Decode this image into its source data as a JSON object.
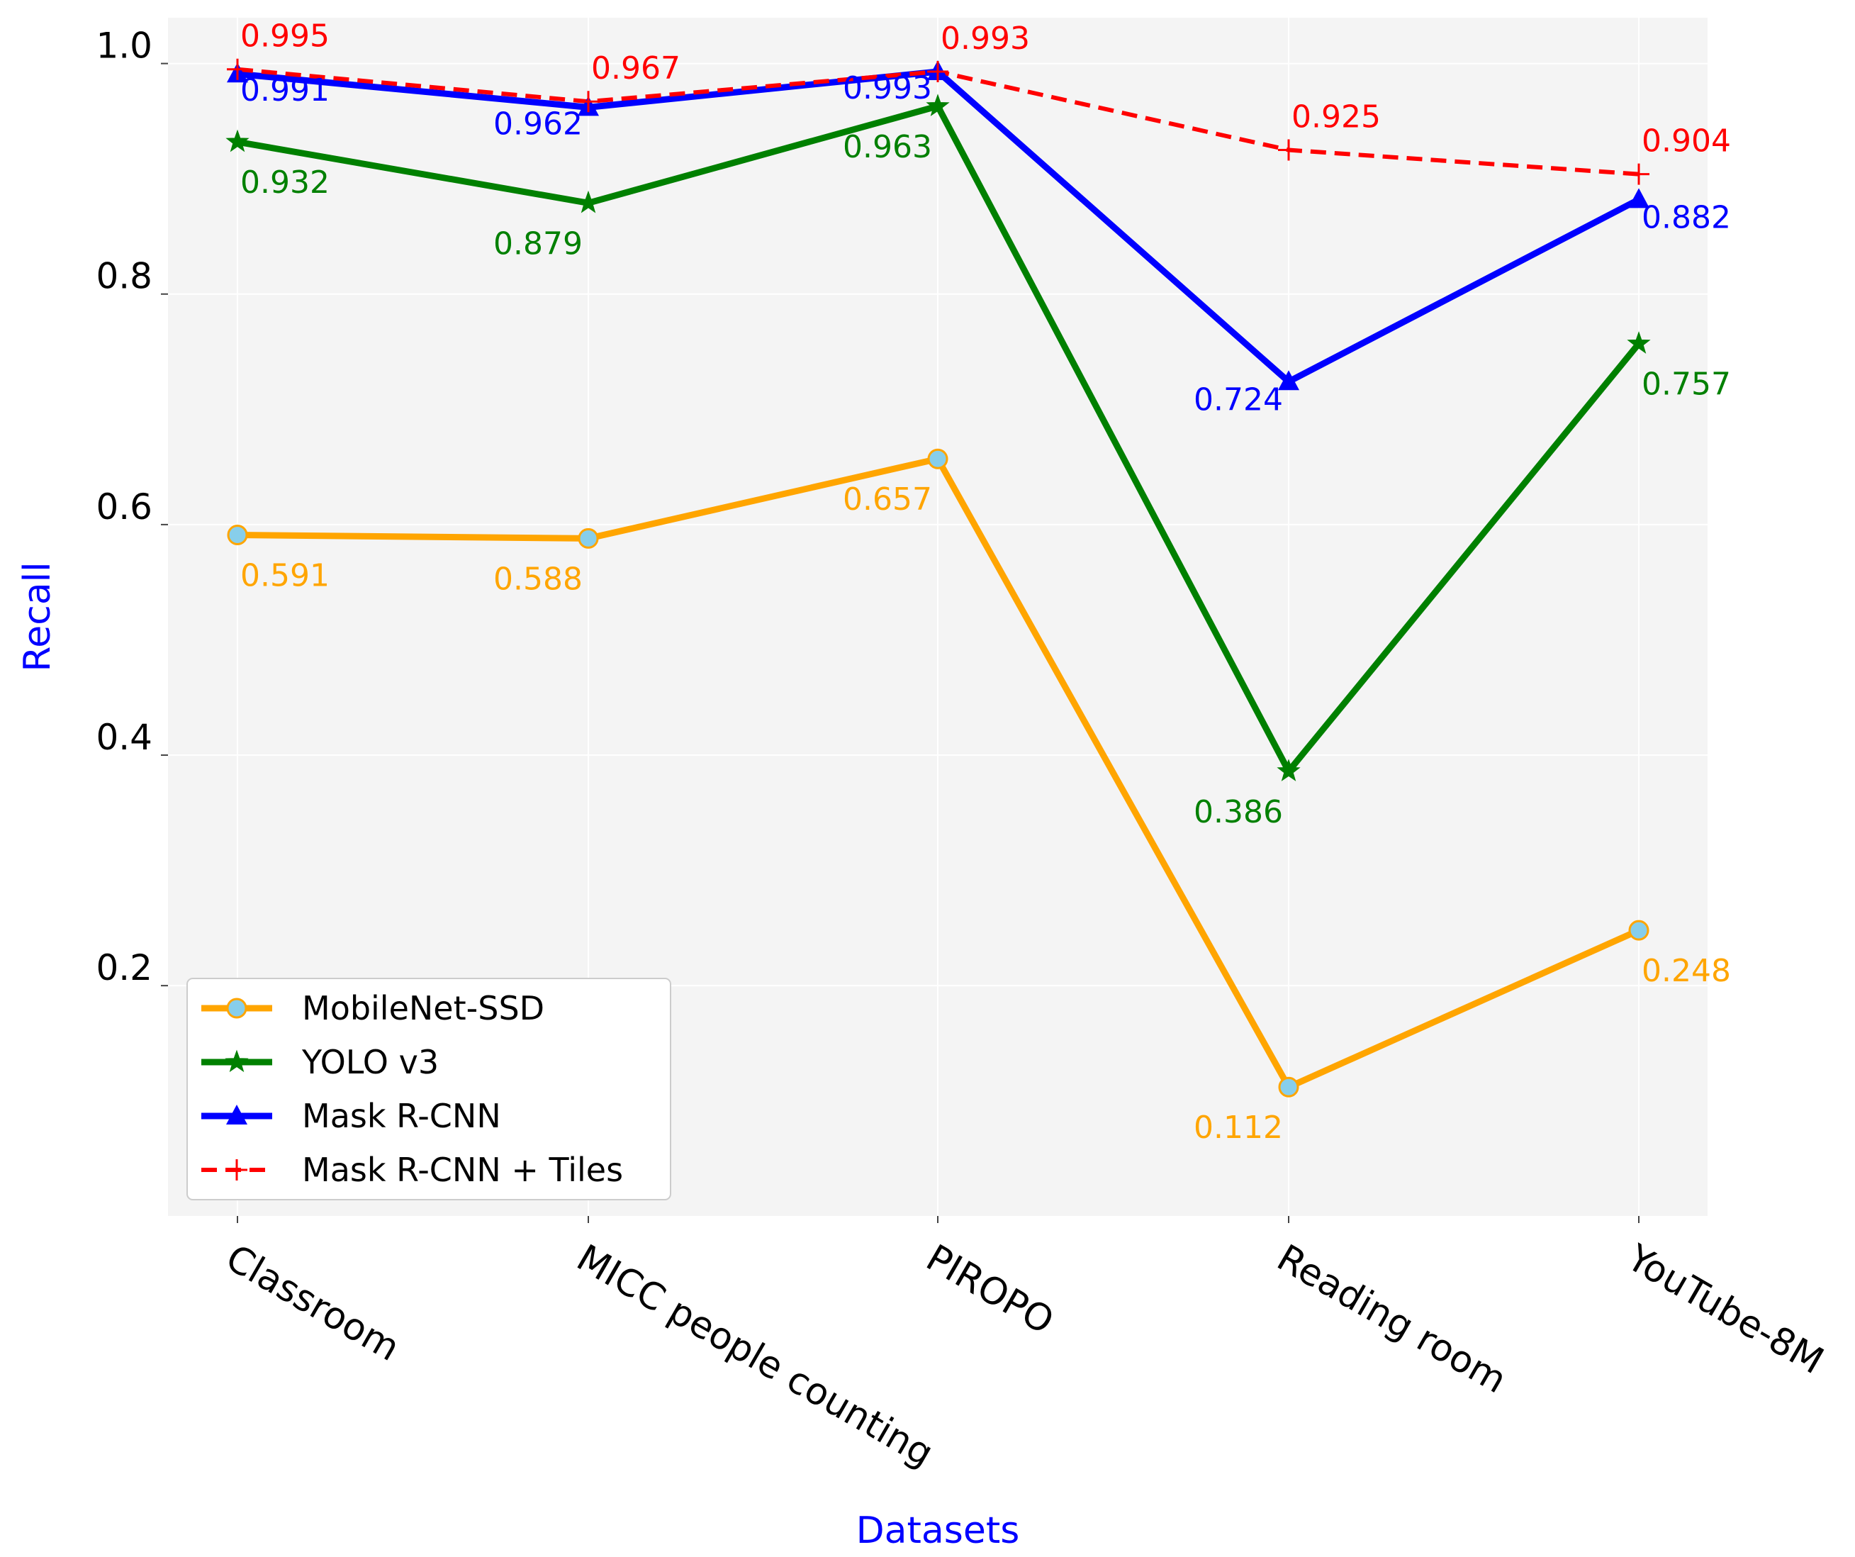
{
  "chart_data": {
    "type": "line",
    "title": "",
    "xlabel": "Datasets",
    "ylabel": "Recall",
    "categories": [
      "Classroom",
      "MICC people counting",
      "PIROPO",
      "Reading room",
      "YouTube-8M"
    ],
    "ylim": [
      0.0,
      1.05
    ],
    "yticks": [
      0.2,
      0.4,
      0.6,
      0.8,
      1.0
    ],
    "ytick_labels": [
      "0.2",
      "0.4",
      "0.6",
      "0.8",
      "1.0"
    ],
    "grid": true,
    "legend_position": "lower-left",
    "series": [
      {
        "name": "MobileNet-SSD",
        "color": "#ffa500",
        "marker": "circle",
        "marker_fill": "#87ceeb",
        "dashed": false,
        "values": [
          0.591,
          0.588,
          0.657,
          0.112,
          0.248
        ],
        "labels": [
          "0.591",
          "0.588",
          "0.657",
          "0.112",
          "0.248"
        ]
      },
      {
        "name": "YOLO v3",
        "color": "#008000",
        "marker": "star",
        "dashed": false,
        "values": [
          0.932,
          0.879,
          0.963,
          0.386,
          0.757
        ],
        "labels": [
          "0.932",
          "0.879",
          "0.963",
          "0.386",
          "0.757"
        ]
      },
      {
        "name": "Mask R-CNN",
        "color": "#0000ff",
        "marker": "triangle",
        "dashed": false,
        "values": [
          0.991,
          0.962,
          0.993,
          0.724,
          0.882
        ],
        "labels": [
          "0.991",
          "0.962",
          "0.993",
          "0.724",
          "0.882"
        ]
      },
      {
        "name": "Mask R-CNN + Tiles",
        "color": "#ff0000",
        "marker": "plus",
        "dashed": true,
        "values": [
          0.995,
          0.967,
          0.993,
          0.925,
          0.904
        ],
        "labels": [
          "0.995",
          "0.967",
          "0.993",
          "0.925",
          "0.904"
        ]
      }
    ]
  }
}
